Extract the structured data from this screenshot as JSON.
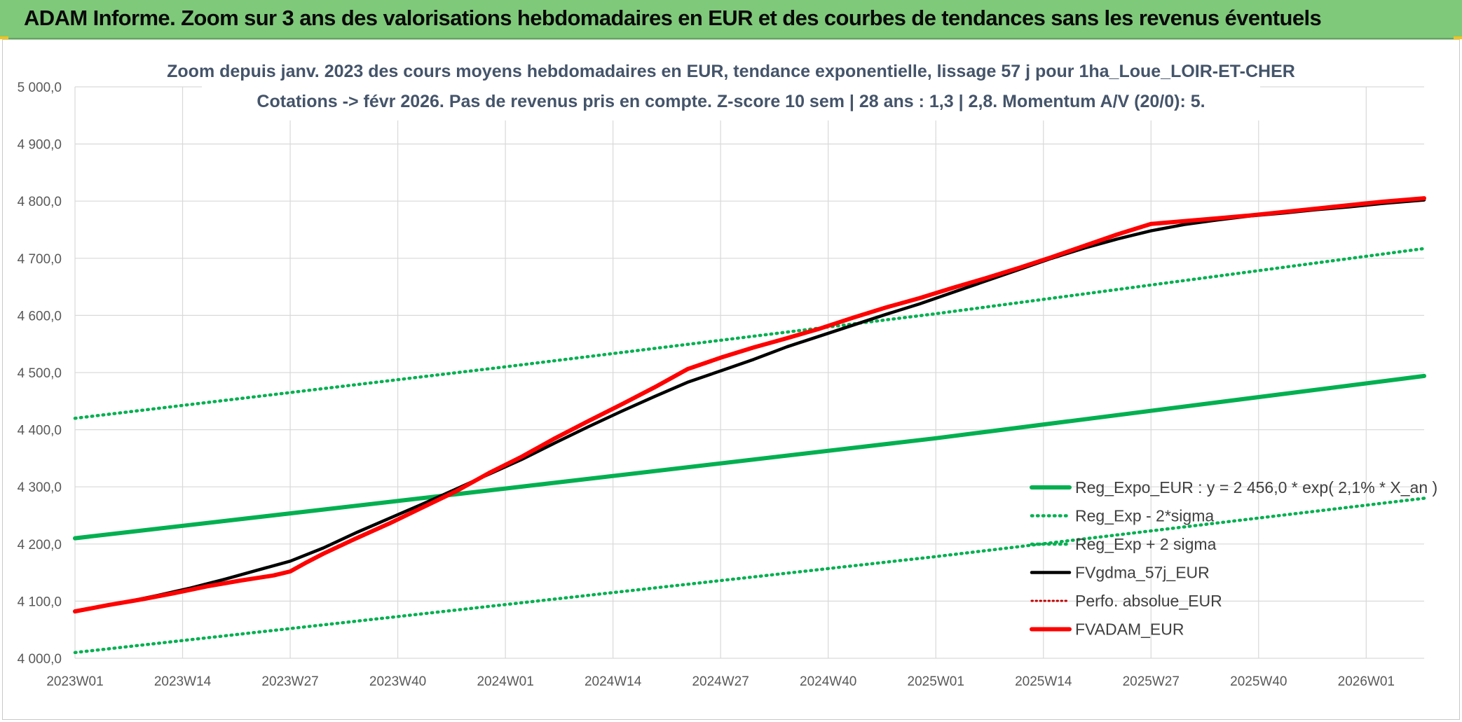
{
  "header": {
    "title": "ADAM Informe. Zoom sur 3 ans des valorisations hebdomadaires en EUR et des courbes de tendances sans les revenus éventuels"
  },
  "chart_data": {
    "type": "line",
    "title_line1": "Zoom depuis janv. 2023 des cours moyens hebdomadaires en EUR, tendance exponentielle, lissage 57 j pour 1ha_Loue_LOIR-ET-CHER",
    "title_line2": "Cotations -> févr 2026. Pas de revenus pris en compte. Z-score 10 sem | 28 ans : 1,3 | 2,8. Momentum A/V (20/0): 5.",
    "xlabel": "",
    "ylabel": "",
    "ylim": [
      4000,
      5000
    ],
    "yticks": [
      "5 000,0",
      "4 900,0",
      "4 800,0",
      "4 700,0",
      "4 600,0",
      "4 500,0",
      "4 400,0",
      "4 300,0",
      "4 200,0",
      "4 100,0",
      "4 000,0"
    ],
    "ytick_values": [
      5000,
      4900,
      4800,
      4700,
      4600,
      4500,
      4400,
      4300,
      4200,
      4100,
      4000
    ],
    "xlim": [
      0,
      163
    ],
    "xticks": [
      "2023W01",
      "2023W14",
      "2023W27",
      "2023W40",
      "2024W01",
      "2024W14",
      "2024W27",
      "2024W40",
      "2025W01",
      "2025W14",
      "2025W27",
      "2025W40",
      "2026W01"
    ],
    "xtick_values": [
      0,
      13,
      26,
      39,
      52,
      65,
      78,
      91,
      104,
      117,
      130,
      143,
      156
    ],
    "grid": true,
    "legend_position": "bottom-right",
    "colors": {
      "reg_expo": "#00b050",
      "fvgdma": "#000000",
      "fvadam": "#ff0000",
      "perfo": "#c00000"
    },
    "series": [
      {
        "name": "Reg_Expo_EUR : y = 2 456,0 * exp( 2,1% *  X_an )",
        "style": "solid-thick",
        "x": [
          0,
          52,
          104,
          163
        ],
        "y": [
          4210,
          4297,
          4385,
          4494
        ]
      },
      {
        "name": "Reg_Exp - 2*sigma",
        "style": "dotted",
        "x": [
          0,
          52,
          104,
          163
        ],
        "y": [
          4010,
          4094,
          4178,
          4280
        ]
      },
      {
        "name": "Reg_Exp + 2 sigma",
        "style": "dotted",
        "x": [
          0,
          52,
          104,
          163
        ],
        "y": [
          4420,
          4510,
          4603,
          4717
        ]
      },
      {
        "name": "FVgdma_57j_EUR",
        "style": "solid",
        "x": [
          0,
          6,
          10,
          14,
          18,
          22,
          26,
          30,
          34,
          38,
          42,
          46,
          50,
          54,
          58,
          62,
          66,
          70,
          74,
          78,
          82,
          86,
          90,
          94,
          98,
          102,
          106,
          110,
          114,
          118,
          122,
          126,
          130,
          134,
          138,
          142,
          146,
          150,
          154,
          158,
          163
        ],
        "y": [
          4083,
          4098,
          4110,
          4123,
          4138,
          4154,
          4170,
          4193,
          4220,
          4245,
          4270,
          4296,
          4322,
          4348,
          4377,
          4405,
          4432,
          4458,
          4483,
          4503,
          4523,
          4545,
          4564,
          4583,
          4602,
          4620,
          4640,
          4660,
          4680,
          4700,
          4718,
          4734,
          4748,
          4759,
          4767,
          4774,
          4779,
          4785,
          4790,
          4796,
          4802
        ]
      },
      {
        "name": "Perfo. absolue_EUR",
        "style": "dotted",
        "x": [],
        "y": []
      },
      {
        "name": "FVADAM_EUR",
        "style": "solid-thick",
        "x": [
          0,
          4,
          8,
          12,
          16,
          20,
          24,
          26,
          28,
          30,
          34,
          38,
          42,
          46,
          50,
          54,
          58,
          62,
          66,
          70,
          74,
          78,
          82,
          86,
          90,
          94,
          98,
          102,
          106,
          110,
          114,
          118,
          122,
          126,
          130,
          134,
          138,
          142,
          146,
          150,
          154,
          158,
          163
        ],
        "y": [
          4082,
          4093,
          4103,
          4114,
          4126,
          4136,
          4145,
          4152,
          4168,
          4183,
          4210,
          4236,
          4264,
          4292,
          4324,
          4353,
          4385,
          4415,
          4444,
          4474,
          4506,
          4526,
          4544,
          4560,
          4577,
          4596,
          4614,
          4630,
          4648,
          4665,
          4683,
          4702,
          4722,
          4742,
          4760,
          4765,
          4770,
          4775,
          4781,
          4787,
          4793,
          4799,
          4805
        ]
      }
    ]
  }
}
